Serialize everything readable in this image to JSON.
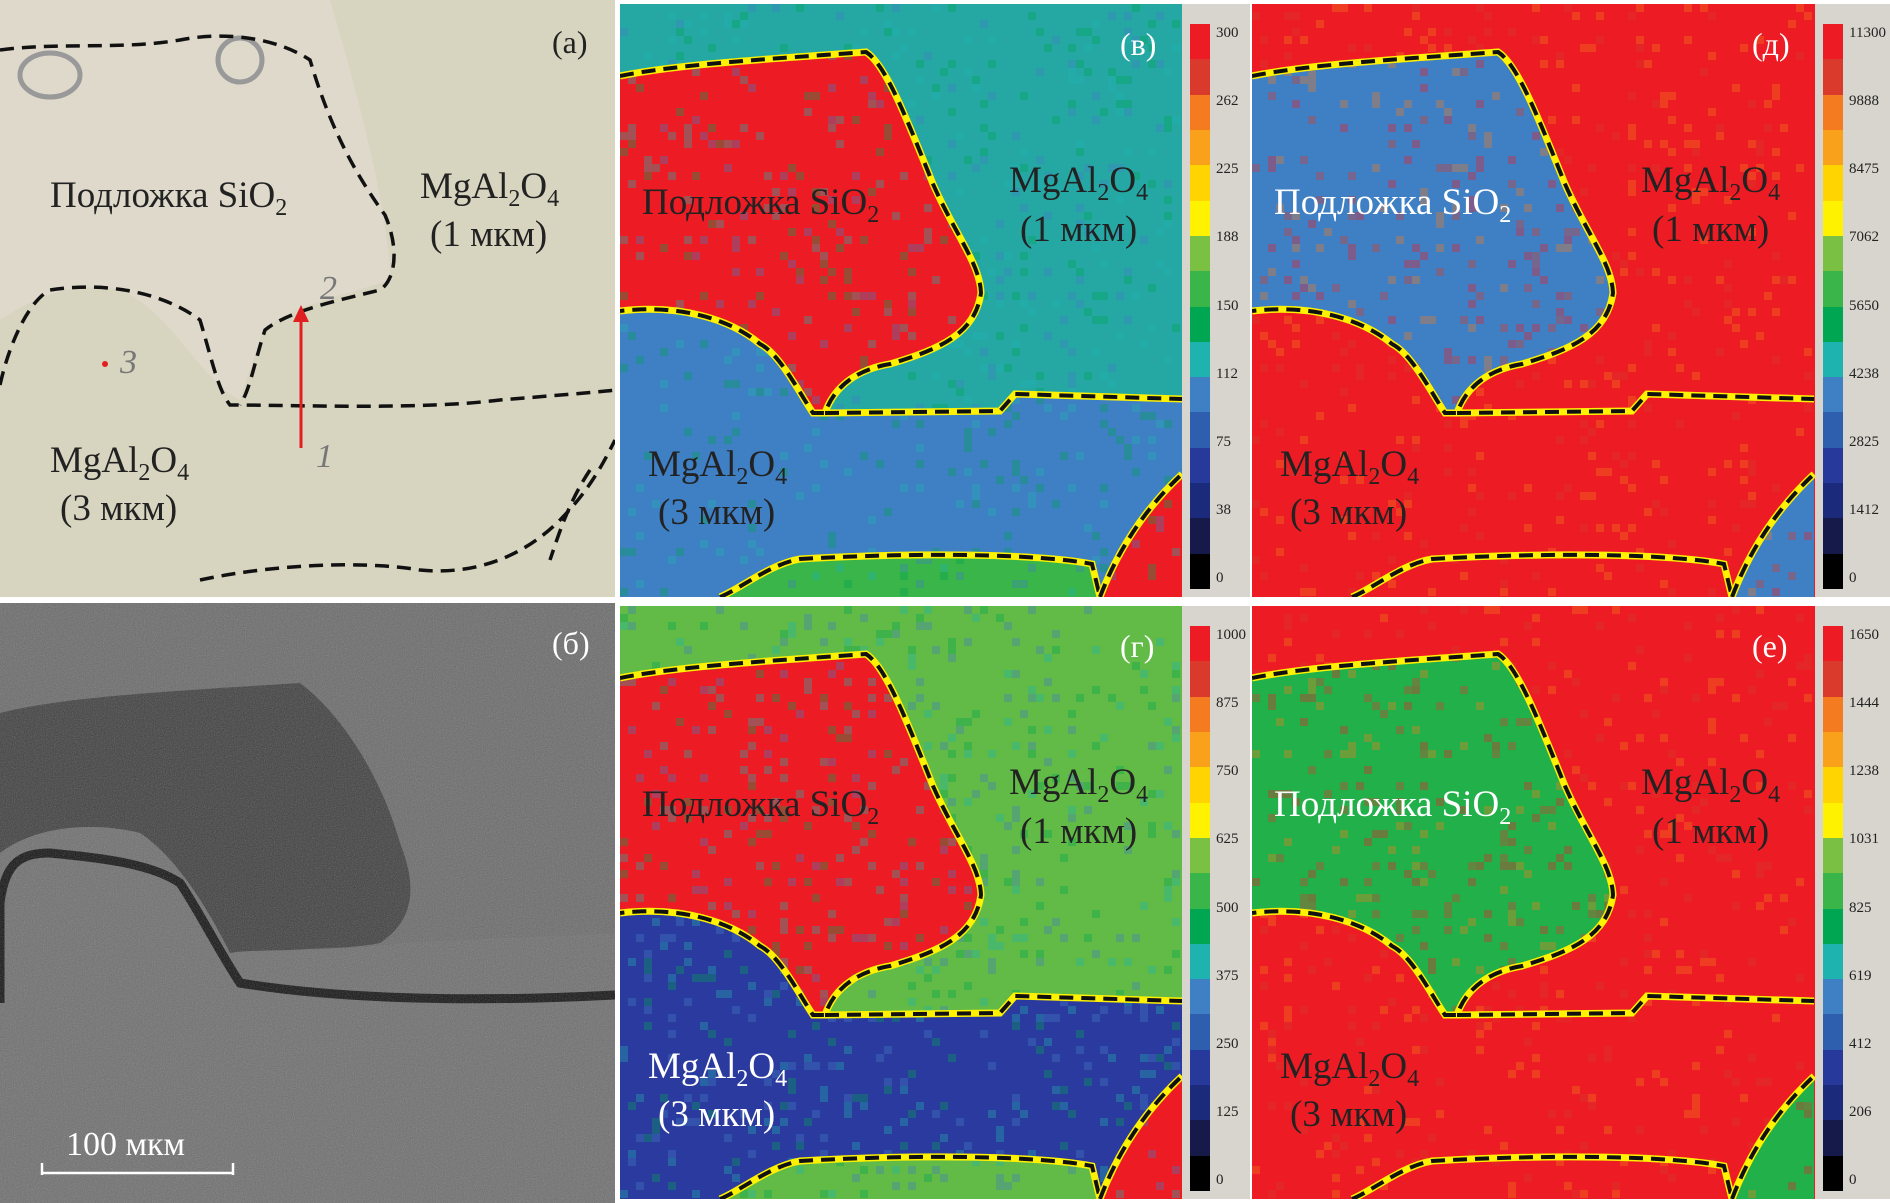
{
  "labels": {
    "substrate": {
      "text": "Подложка SiO",
      "sub": "2"
    },
    "spinel": {
      "a": "MgAl",
      "s1": "2",
      "b": "O",
      "s2": "4"
    },
    "thin": "(1 мкм)",
    "thick": "(3 мкм)"
  },
  "panels": {
    "a": {
      "letter": "(а)",
      "markers": [
        "1",
        "2",
        "3"
      ]
    },
    "b": {
      "letter": "(б)",
      "scale_bar": "100 мкм"
    },
    "v": {
      "letter": "(в)",
      "ticks": [
        "300",
        "262",
        "225",
        "188",
        "150",
        "112",
        "75",
        "38",
        "0"
      ],
      "colors": {
        "bg": "#25a8a4",
        "blob": "#ed1c24",
        "thick": "#3f7fc4",
        "strip": "#3ab54a",
        "corner": "#ed1c24"
      }
    },
    "d": {
      "letter": "(д)",
      "ticks": [
        "11300",
        "9888",
        "8475",
        "7062",
        "5650",
        "4238",
        "2825",
        "1412",
        "0"
      ],
      "colors": {
        "bg": "#ed1c24",
        "blob": "#3f7fc4",
        "thick": "#ed1c24",
        "strip": "#ed1c24",
        "corner": "#3f7fc4"
      }
    },
    "g": {
      "letter": "(г)",
      "ticks": [
        "1000",
        "875",
        "750",
        "625",
        "500",
        "375",
        "250",
        "125",
        "0"
      ],
      "colors": {
        "bg": "#62bb46",
        "blob": "#ed1c24",
        "thick": "#2b3a9e",
        "strip": "#62bb46",
        "corner": "#ed1c24"
      }
    },
    "e": {
      "letter": "(е)",
      "ticks": [
        "1650",
        "1444",
        "1238",
        "1031",
        "825",
        "619",
        "412",
        "206",
        "0"
      ],
      "colors": {
        "bg": "#ed1c24",
        "blob": "#22b04b",
        "thick": "#ed1c24",
        "strip": "#ed1c24",
        "corner": "#22b04b"
      }
    }
  },
  "colorbar_palette": [
    "#ed1c24",
    "#d93a2b",
    "#f47b20",
    "#f9a11b",
    "#ffd400",
    "#fff200",
    "#7ac143",
    "#3ab54a",
    "#00a651",
    "#1fb3b0",
    "#3f7fc4",
    "#2e5fae",
    "#27399a",
    "#1b2a7a",
    "#161a4a",
    "#000000"
  ]
}
